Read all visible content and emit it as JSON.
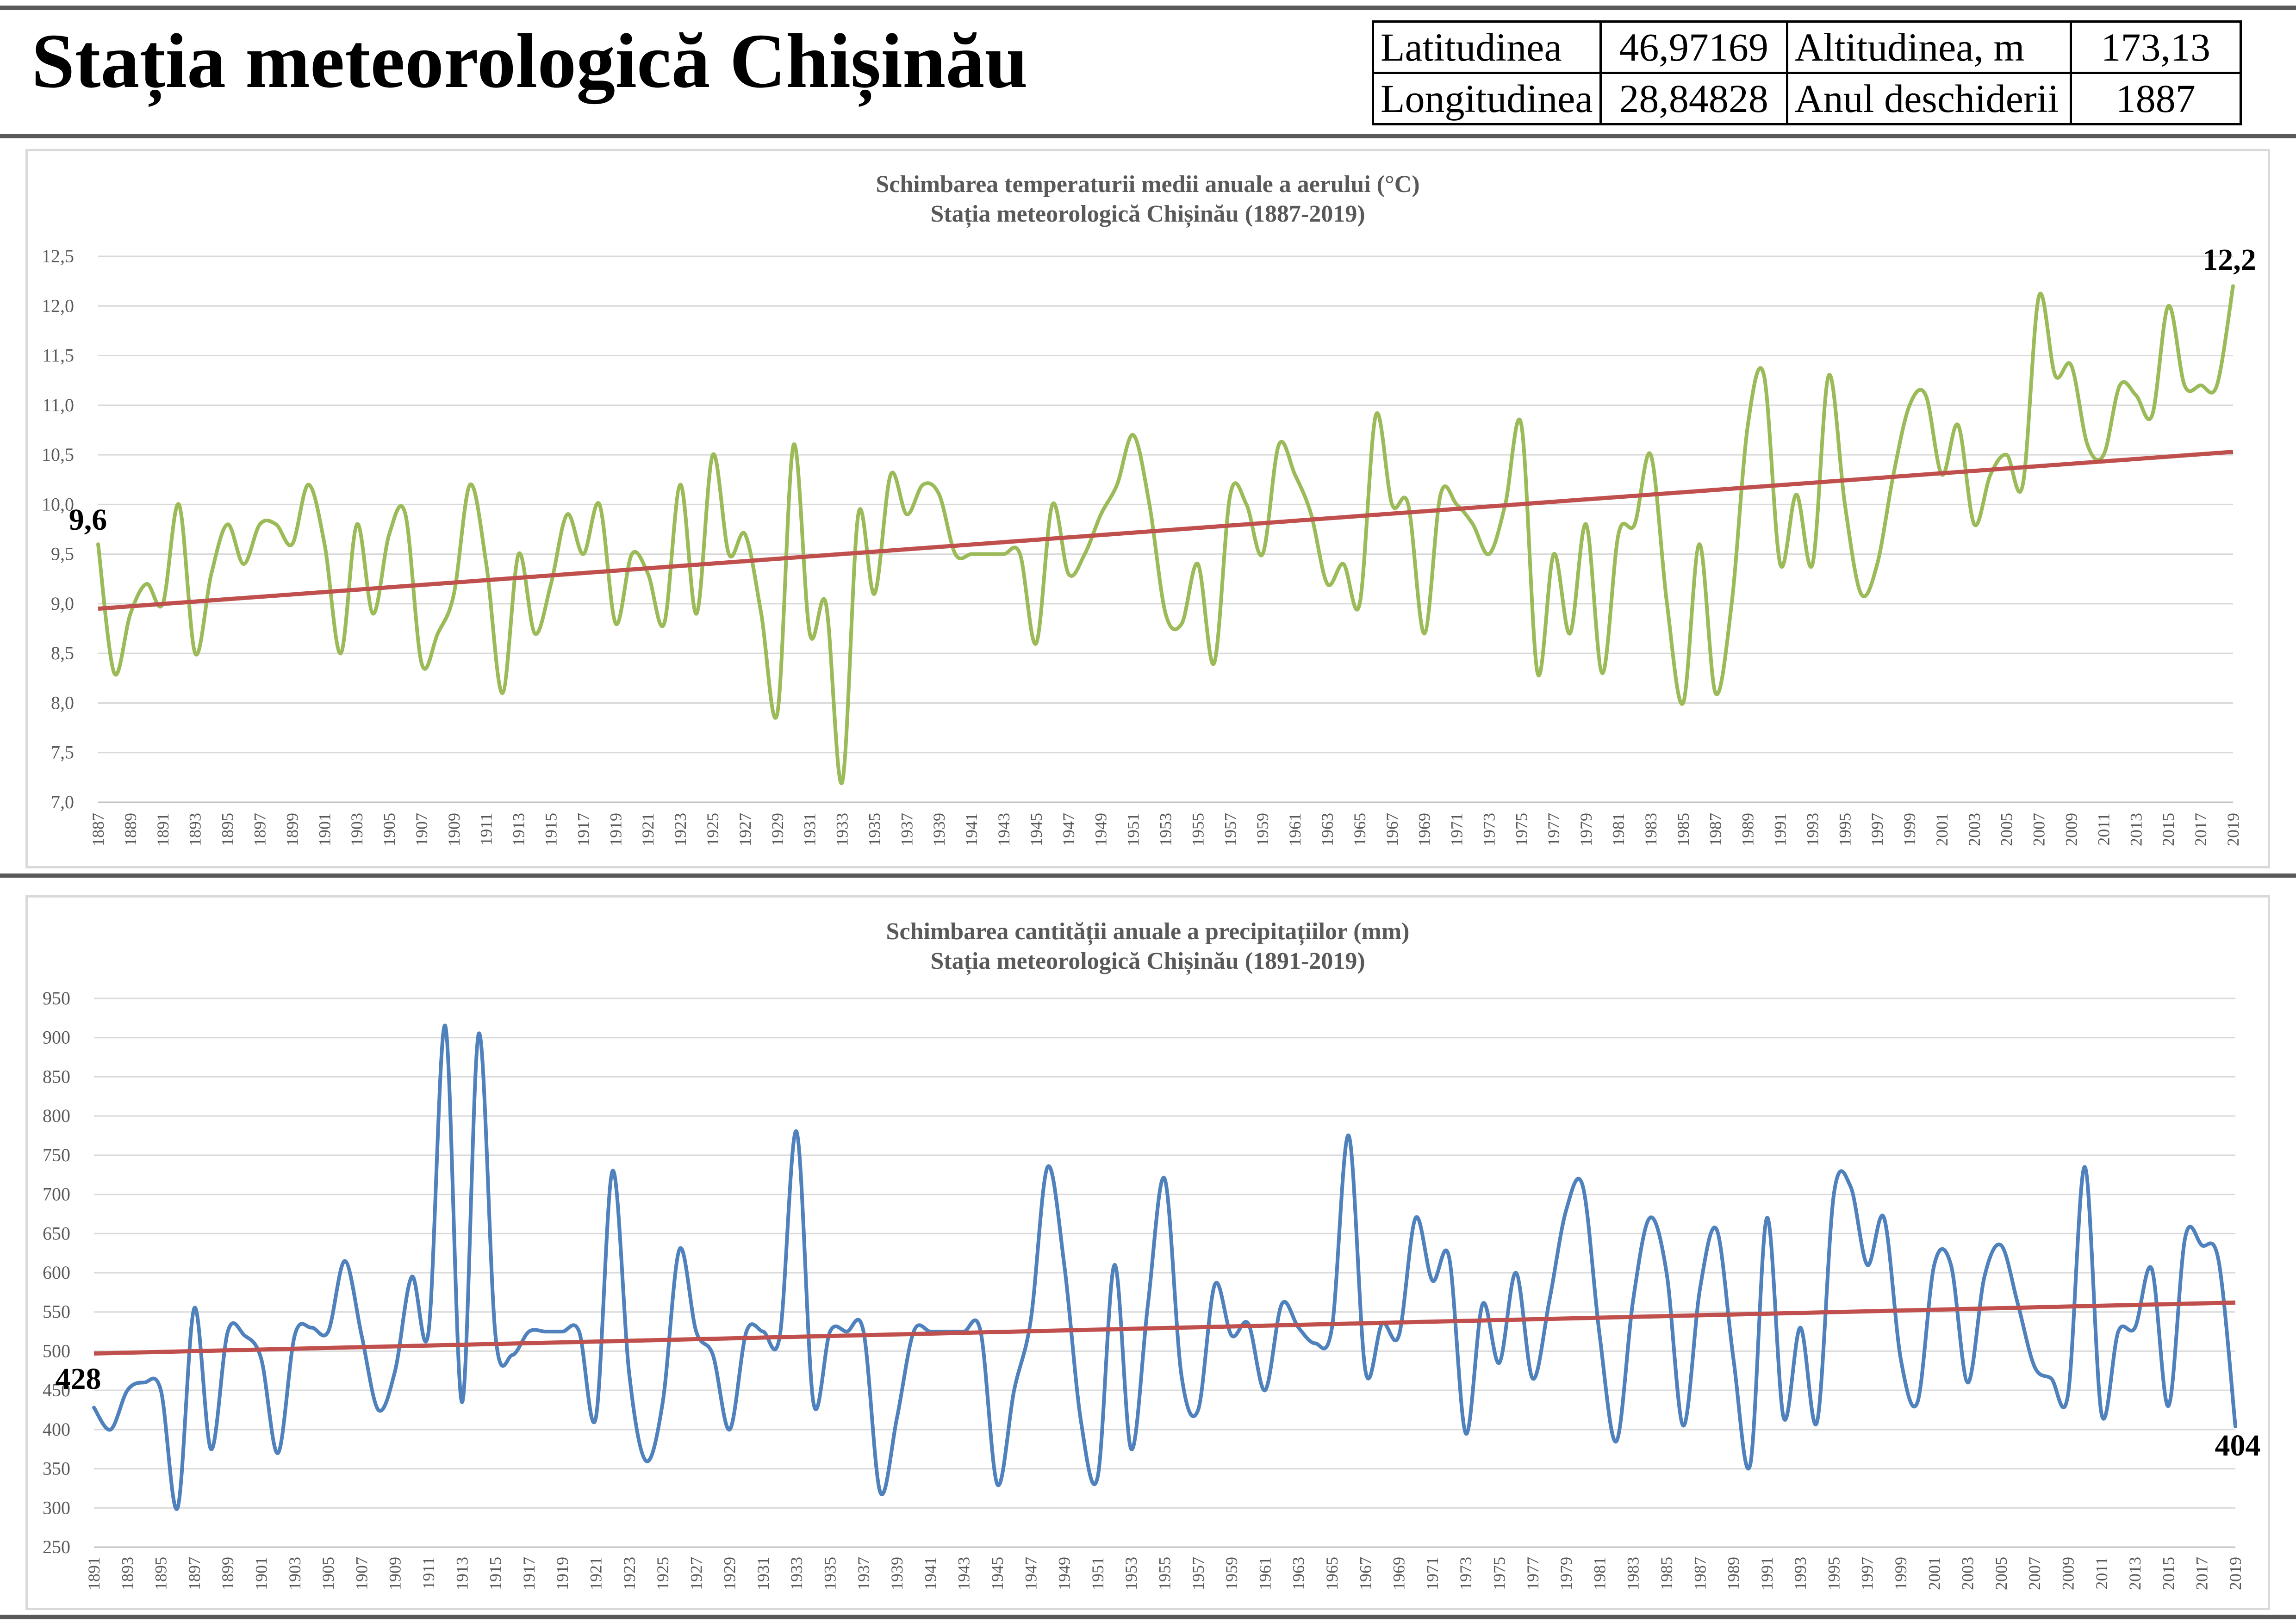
{
  "header": {
    "title": "Stația meteorologică Chișinău",
    "table": [
      [
        "Latitudinea",
        "46,97169",
        "Altitudinea, m",
        "173,13"
      ],
      [
        "Longitudinea",
        "28,84828",
        "Anul deschiderii",
        "1887"
      ]
    ]
  },
  "chart_data": [
    {
      "id": "temp",
      "type": "line",
      "title": "Schimbarea temperaturii medii anuale a aerului (°C)",
      "subtitle": "Stația meteorologică Chișinău (1887-2019)",
      "x_start": 1887,
      "x_end": 2019,
      "ylim": [
        7.0,
        12.5
      ],
      "ystep": 0.5,
      "ydecimals": 1,
      "grid": true,
      "series": [
        {
          "color": "#9bbb59",
          "values": [
            9.6,
            8.3,
            8.9,
            9.2,
            9.0,
            10.0,
            8.5,
            9.3,
            9.8,
            9.4,
            9.8,
            9.8,
            9.6,
            10.2,
            9.6,
            8.5,
            9.8,
            8.9,
            9.7,
            9.9,
            8.4,
            8.7,
            9.1,
            10.2,
            9.4,
            8.1,
            9.5,
            8.7,
            9.2,
            9.9,
            9.5,
            10.0,
            8.8,
            9.5,
            9.3,
            8.8,
            10.2,
            8.9,
            10.5,
            9.5,
            9.7,
            8.9,
            7.9,
            10.6,
            8.7,
            9.0,
            7.2,
            9.9,
            9.1,
            10.3,
            9.9,
            10.2,
            10.1,
            9.5,
            9.5,
            9.5,
            9.5,
            9.5,
            8.6,
            10.0,
            9.3,
            9.5,
            9.9,
            10.2,
            10.7,
            10.0,
            8.9,
            8.8,
            9.4,
            8.4,
            10.1,
            10.0,
            9.5,
            10.6,
            10.3,
            9.9,
            9.2,
            9.4,
            9.0,
            10.9,
            10.0,
            10.0,
            8.7,
            10.1,
            10.0,
            9.8,
            9.5,
            10.0,
            10.8,
            8.3,
            9.5,
            8.7,
            9.8,
            8.3,
            9.7,
            9.8,
            10.5,
            9.0,
            8.0,
            9.6,
            8.1,
            9.0,
            10.8,
            11.3,
            9.4,
            10.1,
            9.4,
            11.3,
            10.0,
            9.1,
            9.4,
            10.3,
            11.0,
            11.1,
            10.3,
            10.8,
            9.8,
            10.3,
            10.5,
            10.2,
            12.1,
            11.3,
            11.4,
            10.6,
            10.5,
            11.2,
            11.1,
            10.9,
            12.0,
            11.2,
            11.2,
            11.2,
            12.2
          ]
        },
        {
          "color": "#c0504d",
          "kind": "linear-trend",
          "values": [
            8.95,
            10.53
          ]
        }
      ],
      "data_labels": [
        "9,6",
        "12,2"
      ]
    },
    {
      "id": "prec",
      "type": "line",
      "title": "Schimbarea cantității anuale a precipitațiilor (mm)",
      "subtitle": "Stația meteorologică Chișinău (1891-2019)",
      "x_start": 1891,
      "x_end": 2019,
      "ylim": [
        250,
        950
      ],
      "ystep": 50,
      "ydecimals": 0,
      "grid": true,
      "series": [
        {
          "color": "#4f81bd",
          "values": [
            428,
            400,
            450,
            460,
            450,
            300,
            555,
            375,
            525,
            520,
            490,
            370,
            520,
            530,
            525,
            615,
            520,
            425,
            475,
            595,
            525,
            915,
            435,
            905,
            520,
            495,
            525,
            525,
            525,
            525,
            415,
            730,
            470,
            360,
            435,
            630,
            525,
            495,
            400,
            525,
            525,
            520,
            780,
            435,
            525,
            525,
            525,
            320,
            415,
            525,
            525,
            525,
            525,
            525,
            330,
            450,
            540,
            735,
            610,
            410,
            340,
            610,
            375,
            560,
            720,
            470,
            425,
            585,
            520,
            535,
            450,
            560,
            530,
            510,
            530,
            775,
            475,
            535,
            520,
            670,
            590,
            620,
            395,
            560,
            485,
            600,
            465,
            565,
            680,
            710,
            520,
            385,
            565,
            670,
            600,
            405,
            580,
            655,
            490,
            355,
            670,
            415,
            530,
            410,
            700,
            710,
            610,
            670,
            490,
            435,
            610,
            610,
            460,
            595,
            635,
            560,
            480,
            465,
            445,
            735,
            420,
            525,
            530,
            605,
            430,
            645,
            635,
            615,
            404
          ]
        },
        {
          "color": "#c0504d",
          "kind": "linear-trend",
          "values": [
            497,
            562
          ]
        }
      ],
      "data_labels": [
        "428",
        "404"
      ]
    }
  ]
}
